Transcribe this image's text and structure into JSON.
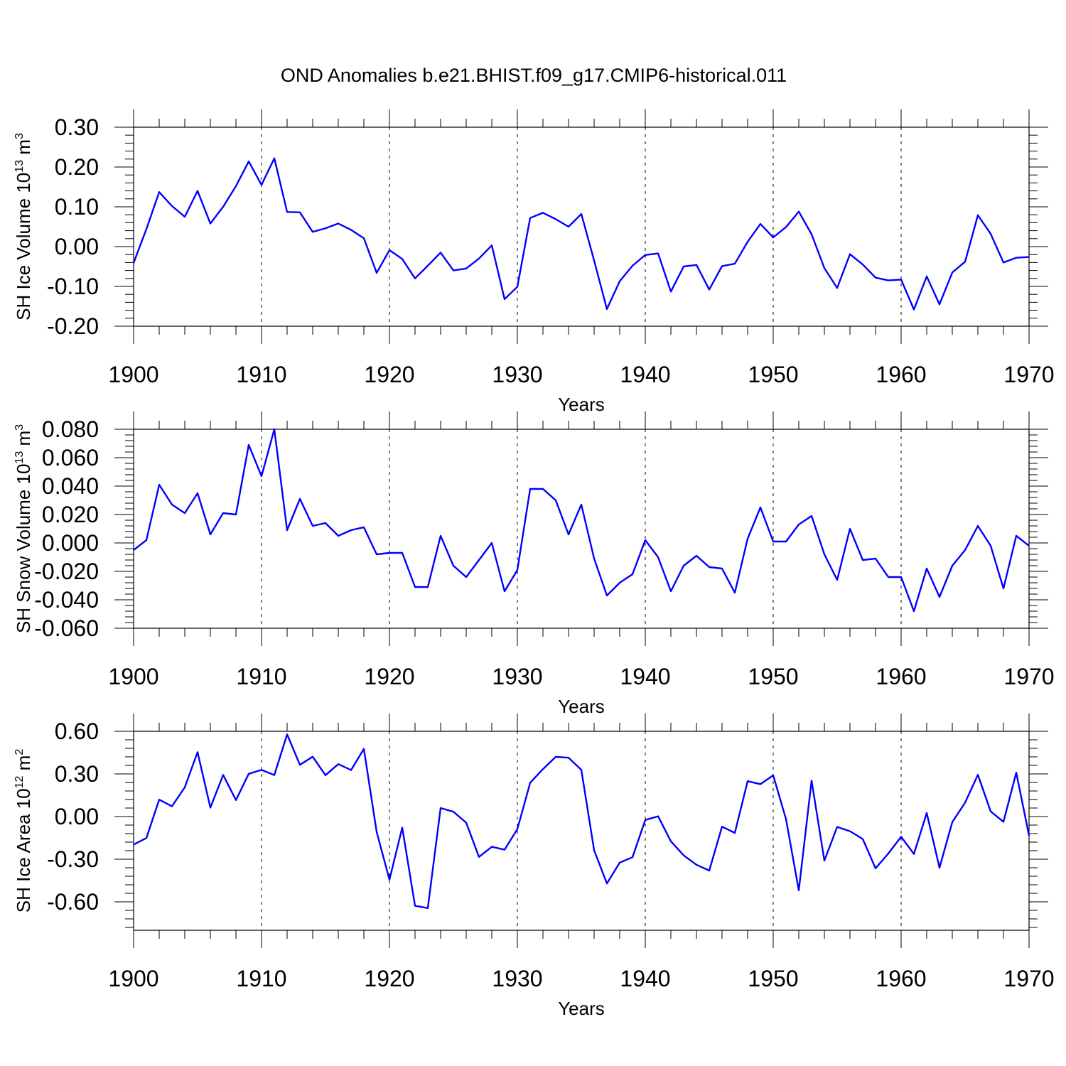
{
  "figure": {
    "title": "OND Anomalies b.e21.BHIST.f09_g17.CMIP6-historical.011",
    "line_color": "#0000ff"
  },
  "chart_data": [
    {
      "type": "line",
      "ylabel": "SH Ice Volume 10",
      "ylabel_exponent": "13",
      "ylabel_unit": " m",
      "ylabel_unit_exponent": "3",
      "xlabel": "Years",
      "xlim": [
        1900,
        1970
      ],
      "ylim": [
        -0.2,
        0.3
      ],
      "yticks": [
        -0.2,
        -0.1,
        0.0,
        0.1,
        0.2,
        0.3
      ],
      "ytick_labels": [
        "-0.20",
        "-0.10",
        "0.00",
        "0.10",
        "0.20",
        "0.30"
      ],
      "xticks": [
        1900,
        1910,
        1920,
        1930,
        1940,
        1950,
        1960,
        1970
      ],
      "xtick_labels": [
        "1900",
        "1910",
        "1920",
        "1930",
        "1940",
        "1950",
        "1960",
        "1970"
      ],
      "x_start": 1900,
      "series": [
        {
          "name": "SH Ice Volume",
          "values": [
            -0.041,
            0.044,
            0.137,
            0.102,
            0.075,
            0.14,
            0.058,
            0.1,
            0.152,
            0.214,
            0.155,
            0.222,
            0.087,
            0.086,
            0.037,
            0.046,
            0.058,
            0.042,
            0.021,
            -0.066,
            -0.009,
            -0.031,
            -0.08,
            -0.048,
            -0.015,
            -0.06,
            -0.055,
            -0.03,
            0.003,
            -0.132,
            -0.101,
            0.072,
            0.085,
            0.069,
            0.05,
            0.082,
            -0.035,
            -0.157,
            -0.087,
            -0.048,
            -0.021,
            -0.017,
            -0.113,
            -0.05,
            -0.046,
            -0.108,
            -0.049,
            -0.043,
            0.012,
            0.057,
            0.023,
            0.049,
            0.088,
            0.031,
            -0.054,
            -0.104,
            -0.019,
            -0.045,
            -0.078,
            -0.085,
            -0.083,
            -0.158,
            -0.075,
            -0.145,
            -0.065,
            -0.038,
            0.079,
            0.032,
            -0.04,
            -0.028,
            -0.026
          ]
        }
      ]
    },
    {
      "type": "line",
      "ylabel": "SH Snow Volume 10",
      "ylabel_exponent": "13",
      "ylabel_unit": " m",
      "ylabel_unit_exponent": "3",
      "xlabel": "Years",
      "xlim": [
        1900,
        1970
      ],
      "ylim": [
        -0.06,
        0.08
      ],
      "yticks": [
        -0.06,
        -0.04,
        -0.02,
        0.0,
        0.02,
        0.04,
        0.06,
        0.08
      ],
      "ytick_labels": [
        "-0.060",
        "-0.040",
        "-0.020",
        "0.000",
        "0.020",
        "0.040",
        "0.060",
        "0.080"
      ],
      "xticks": [
        1900,
        1910,
        1920,
        1930,
        1940,
        1950,
        1960,
        1970
      ],
      "xtick_labels": [
        "1900",
        "1910",
        "1920",
        "1930",
        "1940",
        "1950",
        "1960",
        "1970"
      ],
      "x_start": 1900,
      "series": [
        {
          "name": "SH Snow Volume",
          "values": [
            -0.005,
            0.002,
            0.041,
            0.027,
            0.021,
            0.035,
            0.006,
            0.021,
            0.02,
            0.069,
            0.047,
            0.08,
            0.009,
            0.031,
            0.012,
            0.014,
            0.005,
            0.009,
            0.011,
            -0.008,
            -0.007,
            -0.007,
            -0.031,
            -0.031,
            0.005,
            -0.016,
            -0.024,
            -0.012,
            0.0,
            -0.034,
            -0.019,
            0.038,
            0.038,
            0.03,
            0.006,
            0.027,
            -0.011,
            -0.037,
            -0.028,
            -0.022,
            0.002,
            -0.01,
            -0.034,
            -0.016,
            -0.009,
            -0.017,
            -0.018,
            -0.035,
            0.003,
            0.025,
            0.001,
            0.001,
            0.013,
            0.019,
            -0.008,
            -0.026,
            0.01,
            -0.012,
            -0.011,
            -0.024,
            -0.024,
            -0.048,
            -0.018,
            -0.038,
            -0.016,
            -0.005,
            0.012,
            -0.002,
            -0.032,
            0.005,
            -0.002
          ]
        }
      ]
    },
    {
      "type": "line",
      "ylabel": "SH Ice Area 10",
      "ylabel_exponent": "12",
      "ylabel_unit": " m",
      "ylabel_unit_exponent": "2",
      "xlabel": "Years",
      "xlim": [
        1900,
        1970
      ],
      "ylim": [
        -0.8,
        0.6
      ],
      "yticks": [
        -0.6,
        -0.3,
        0.0,
        0.3,
        0.6
      ],
      "ytick_labels": [
        "-0.60",
        "-0.30",
        "0.00",
        "0.30",
        "0.60"
      ],
      "xticks": [
        1900,
        1910,
        1920,
        1930,
        1940,
        1950,
        1960,
        1970
      ],
      "xtick_labels": [
        "1900",
        "1910",
        "1920",
        "1930",
        "1940",
        "1950",
        "1960",
        "1970"
      ],
      "x_start": 1900,
      "series": [
        {
          "name": "SH Ice Area",
          "values": [
            -0.197,
            -0.151,
            0.119,
            0.072,
            0.206,
            0.453,
            0.063,
            0.293,
            0.116,
            0.301,
            0.328,
            0.292,
            0.578,
            0.364,
            0.421,
            0.291,
            0.369,
            0.327,
            0.476,
            -0.108,
            -0.444,
            -0.078,
            -0.628,
            -0.644,
            0.06,
            0.034,
            -0.043,
            -0.284,
            -0.213,
            -0.233,
            -0.088,
            0.237,
            0.334,
            0.42,
            0.414,
            0.329,
            -0.237,
            -0.471,
            -0.324,
            -0.286,
            -0.024,
            0.002,
            -0.174,
            -0.273,
            -0.339,
            -0.38,
            -0.071,
            -0.115,
            0.249,
            0.228,
            0.29,
            -0.018,
            -0.519,
            0.253,
            -0.31,
            -0.073,
            -0.103,
            -0.158,
            -0.364,
            -0.26,
            -0.142,
            -0.263,
            0.025,
            -0.36,
            -0.039,
            0.098,
            0.294,
            0.036,
            -0.037,
            0.309,
            -0.134
          ]
        }
      ]
    }
  ]
}
